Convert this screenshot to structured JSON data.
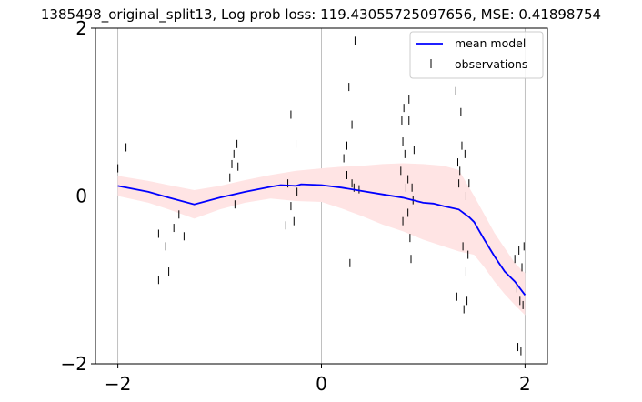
{
  "chart_data": {
    "type": "line",
    "title": "1385498_original_split13, Log prob loss: 119.43055725097656, MSE: 0.41898754",
    "xlabel": "",
    "ylabel": "",
    "xlim": [
      -2.22,
      2.22
    ],
    "ylim": [
      -2,
      2
    ],
    "x_ticks": [
      -2,
      0,
      2
    ],
    "y_ticks": [
      -2,
      0,
      2
    ],
    "x_tick_labels": [
      "−2",
      "0",
      "2"
    ],
    "y_tick_labels": [
      "−2",
      "0",
      "2"
    ],
    "grid": true,
    "legend_position": "top-right",
    "legend": [
      "mean model",
      "observations"
    ],
    "colors": {
      "mean_model": "#0000ff",
      "band": "#ffe4e4",
      "observations": "#000000",
      "grid": "#b0b0b0"
    },
    "series": [
      {
        "name": "mean model",
        "kind": "line",
        "x": [
          -2.0,
          -1.7,
          -1.5,
          -1.25,
          -1.0,
          -0.75,
          -0.5,
          -0.4,
          -0.25,
          -0.2,
          0.0,
          0.2,
          0.4,
          0.6,
          0.8,
          1.0,
          1.1,
          1.2,
          1.35,
          1.45,
          1.5,
          1.6,
          1.7,
          1.8,
          1.9,
          2.0
        ],
        "y": [
          0.12,
          0.05,
          -0.02,
          -0.1,
          -0.02,
          0.05,
          0.11,
          0.13,
          0.12,
          0.14,
          0.13,
          0.1,
          0.06,
          0.02,
          -0.02,
          -0.08,
          -0.09,
          -0.12,
          -0.16,
          -0.25,
          -0.31,
          -0.52,
          -0.72,
          -0.9,
          -1.02,
          -1.18
        ]
      },
      {
        "name": "uncertainty band",
        "kind": "band",
        "x": [
          -2.0,
          -1.7,
          -1.5,
          -1.25,
          -1.0,
          -0.75,
          -0.5,
          -0.25,
          0.0,
          0.2,
          0.4,
          0.6,
          0.8,
          1.0,
          1.2,
          1.35,
          1.5,
          1.6,
          1.7,
          1.8,
          1.9,
          2.0
        ],
        "upper": [
          0.24,
          0.18,
          0.13,
          0.07,
          0.12,
          0.19,
          0.25,
          0.3,
          0.33,
          0.35,
          0.36,
          0.38,
          0.39,
          0.38,
          0.36,
          0.31,
          0.0,
          -0.22,
          -0.44,
          -0.62,
          -0.8,
          -0.92
        ],
        "lower": [
          0.0,
          -0.08,
          -0.16,
          -0.27,
          -0.16,
          -0.08,
          -0.03,
          -0.06,
          -0.07,
          -0.15,
          -0.24,
          -0.34,
          -0.42,
          -0.52,
          -0.6,
          -0.66,
          -0.7,
          -0.85,
          -1.02,
          -1.17,
          -1.3,
          -1.42
        ]
      },
      {
        "name": "observations",
        "kind": "scatter",
        "marker": "vline",
        "x": [
          -2.0,
          -1.92,
          -1.6,
          -1.6,
          -1.53,
          -1.5,
          -1.45,
          -1.4,
          -1.35,
          -0.9,
          -0.88,
          -0.86,
          -0.85,
          -0.83,
          -0.82,
          -0.35,
          -0.33,
          -0.3,
          -0.3,
          -0.27,
          -0.25,
          -0.24,
          0.22,
          0.25,
          0.25,
          0.27,
          0.28,
          0.3,
          0.3,
          0.32,
          0.33,
          0.37,
          0.78,
          0.79,
          0.8,
          0.8,
          0.81,
          0.82,
          0.83,
          0.85,
          0.85,
          0.86,
          0.86,
          0.87,
          0.88,
          0.89,
          0.9,
          0.91,
          1.32,
          1.33,
          1.34,
          1.35,
          1.36,
          1.37,
          1.38,
          1.39,
          1.4,
          1.41,
          1.42,
          1.42,
          1.43,
          1.44,
          1.45,
          1.9,
          1.92,
          1.93,
          1.94,
          1.95,
          1.96,
          1.97,
          1.98,
          1.99
        ],
        "y": [
          0.33,
          0.58,
          -0.45,
          -1.0,
          -0.6,
          -0.9,
          -0.38,
          -0.22,
          -0.48,
          0.22,
          0.38,
          0.5,
          -0.1,
          0.62,
          0.35,
          -0.35,
          0.15,
          -0.12,
          0.97,
          -0.3,
          0.62,
          0.05,
          0.45,
          0.25,
          0.6,
          1.3,
          -0.8,
          0.85,
          0.15,
          0.1,
          1.85,
          0.08,
          0.3,
          0.9,
          0.65,
          -0.3,
          1.05,
          0.5,
          0.1,
          0.2,
          -0.2,
          1.15,
          0.9,
          -0.5,
          -0.75,
          0.1,
          -0.05,
          0.55,
          1.25,
          -1.2,
          0.4,
          0.15,
          0.3,
          1.0,
          0.6,
          -0.6,
          -1.35,
          0.5,
          -0.9,
          0.0,
          -1.25,
          -0.7,
          0.15,
          -0.75,
          -1.1,
          -1.8,
          -0.65,
          -1.25,
          -1.85,
          -0.85,
          -1.3,
          -0.6
        ]
      }
    ]
  }
}
